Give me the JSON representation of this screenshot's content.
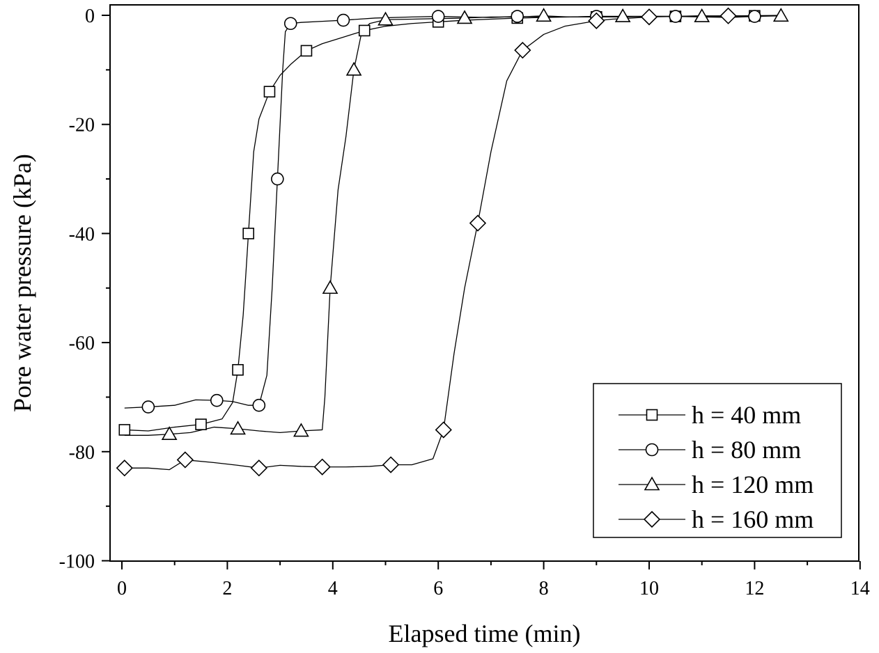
{
  "chart_data": {
    "type": "line",
    "title": "",
    "xlabel": "Elapsed time (min)",
    "ylabel": "Pore water pressure (kPa)",
    "xlim": [
      0,
      14
    ],
    "ylim": [
      -100,
      0
    ],
    "xticks": [
      0,
      2,
      4,
      6,
      8,
      10,
      12,
      14
    ],
    "yticks": [
      0,
      -20,
      -40,
      -60,
      -80,
      -100
    ],
    "xtick_labels": [
      "0",
      "2",
      "4",
      "6",
      "8",
      "10",
      "12",
      "14"
    ],
    "ytick_labels": [
      "0",
      "-20",
      "-40",
      "-60",
      "-80",
      "-100"
    ],
    "grid": false,
    "legend_position": "bottom-right",
    "series": [
      {
        "name": "h = 40 mm",
        "marker": "square",
        "x": [
          0.05,
          0.5,
          1.0,
          1.5,
          1.9,
          2.1,
          2.2,
          2.3,
          2.35,
          2.4,
          2.5,
          2.6,
          2.8,
          3.0,
          3.2,
          3.5,
          3.8,
          4.2,
          4.6,
          5.0,
          5.5,
          6.0,
          6.5,
          7.0,
          7.5,
          8.0,
          8.5,
          9.0,
          9.5,
          10.0,
          10.5,
          11.0,
          11.5,
          12.0,
          12.5
        ],
        "y": [
          -76,
          -76.2,
          -75.5,
          -75,
          -74,
          -71,
          -65,
          -55,
          -47.6,
          -40,
          -25,
          -19,
          -14,
          -11,
          -9,
          -6.5,
          -5.2,
          -4,
          -2.8,
          -2,
          -1.5,
          -1.2,
          -0.9,
          -0.7,
          -0.5,
          -0.4,
          -0.3,
          -0.3,
          -0.3,
          -0.2,
          -0.2,
          -0.2,
          -0.1,
          -0.1,
          -0.1
        ]
      },
      {
        "name": "h = 80 mm",
        "marker": "circle",
        "x": [
          0.05,
          0.5,
          1.0,
          1.4,
          1.8,
          2.1,
          2.4,
          2.6,
          2.75,
          2.85,
          2.95,
          3.05,
          3.1,
          3.2,
          3.4,
          3.8,
          4.2,
          4.8,
          5.5,
          6.0,
          6.5,
          7.0,
          7.5,
          8.0,
          8.5,
          9.0,
          9.5,
          10.0,
          10.5,
          11.0,
          11.5,
          12.0,
          12.5
        ],
        "y": [
          -72,
          -71.8,
          -71.5,
          -70.5,
          -70.6,
          -70.8,
          -71.5,
          -71.5,
          -66,
          -50,
          -30,
          -10,
          -3,
          -1.5,
          -1.3,
          -1.1,
          -0.9,
          -0.5,
          -0.3,
          -0.2,
          -0.3,
          -0.4,
          -0.2,
          -0.3,
          -0.3,
          -0.2,
          -0.2,
          -0.2,
          -0.2,
          -0.3,
          -0.4,
          -0.2,
          -0.1
        ]
      },
      {
        "name": "h = 120 mm",
        "marker": "triangle",
        "x": [
          0.05,
          0.5,
          0.9,
          1.3,
          1.75,
          2.2,
          2.6,
          3.0,
          3.4,
          3.8,
          3.85,
          3.95,
          4.1,
          4.25,
          4.4,
          4.55,
          4.7,
          5.0,
          5.5,
          6.0,
          6.5,
          7.0,
          7.5,
          8.0,
          8.5,
          9.0,
          9.5,
          10.0,
          10.5,
          11.0,
          11.5,
          12.0,
          12.5
        ],
        "y": [
          -77,
          -77,
          -76.8,
          -76.5,
          -75.5,
          -75.8,
          -76.2,
          -76.5,
          -76.2,
          -76,
          -70,
          -50,
          -32,
          -22.2,
          -10,
          -3,
          -1.5,
          -0.8,
          -0.7,
          -0.6,
          -0.5,
          -0.3,
          -0.3,
          -0.1,
          -0.3,
          -0.2,
          -0.2,
          -0.2,
          -0.2,
          -0.2,
          -0.2,
          -0.1,
          -0.1
        ]
      },
      {
        "name": "h = 160 mm",
        "marker": "diamond",
        "x": [
          0.05,
          0.5,
          0.9,
          1.2,
          1.75,
          2.2,
          2.6,
          3.0,
          3.4,
          3.8,
          4.25,
          4.7,
          5.1,
          5.5,
          5.9,
          6.1,
          6.3,
          6.5,
          6.75,
          7.0,
          7.3,
          7.6,
          8.0,
          8.4,
          9.0,
          9.3,
          9.5,
          10.0,
          10.5,
          10.9,
          11.5,
          11.75,
          12.5
        ],
        "y": [
          -83,
          -83,
          -83.3,
          -81.5,
          -82,
          -82.5,
          -83,
          -82.5,
          -82.7,
          -82.8,
          -82.8,
          -82.7,
          -82.4,
          -82.4,
          -81.3,
          -76,
          -62,
          -50,
          -38.1,
          -25,
          -12,
          -6.4,
          -3.5,
          -2,
          -1,
          -0.7,
          -0.6,
          -0.3,
          -0.2,
          -0.1,
          -0.1,
          -0.1,
          0
        ]
      }
    ]
  }
}
